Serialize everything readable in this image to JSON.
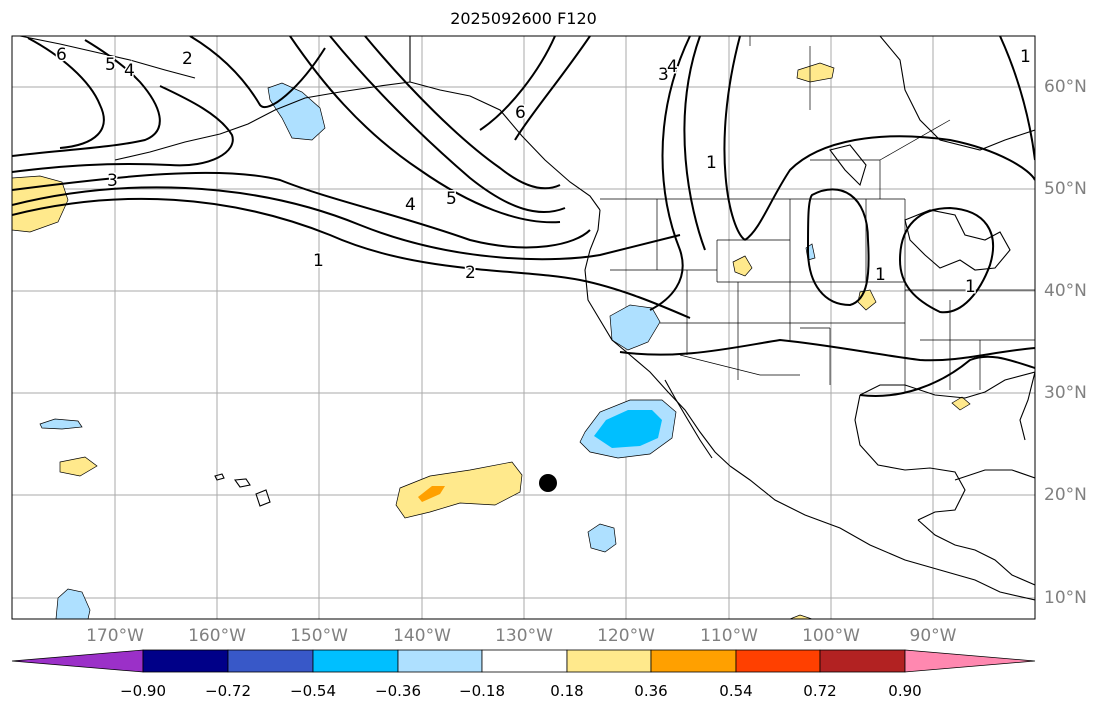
{
  "title": "2025092600 F120",
  "lon_labels": [
    "170°W",
    "160°W",
    "150°W",
    "140°W",
    "130°W",
    "120°W",
    "110°W",
    "100°W",
    "90°W"
  ],
  "lat_labels": [
    "60°N",
    "50°N",
    "40°N",
    "30°N",
    "20°N",
    "10°N"
  ],
  "colorbar": {
    "ticks": [
      "−0.90",
      "−0.72",
      "−0.54",
      "−0.36",
      "−0.18",
      "0.18",
      "0.36",
      "0.54",
      "0.72",
      "0.90"
    ],
    "colors": [
      "#9b30c8",
      "#000088",
      "#3858c8",
      "#00bfff",
      "#aee0ff",
      "#ffffff",
      "#ffe98c",
      "#ffa000",
      "#ff4000",
      "#b22222",
      "#ff88b0"
    ]
  },
  "contour_labels": [
    "6",
    "5",
    "4",
    "3",
    "2",
    "1",
    "6",
    "5",
    "4",
    "3",
    "4",
    "1",
    "2",
    "1",
    "1",
    "1"
  ],
  "colors": {
    "land_outline": "#000000",
    "gridline": "#aaaaaa",
    "positive_light": "#ffe98c",
    "positive_mid": "#ffa000",
    "negative_light": "#aee0ff",
    "negative_mid": "#00bfff",
    "marker": "#000000"
  }
}
